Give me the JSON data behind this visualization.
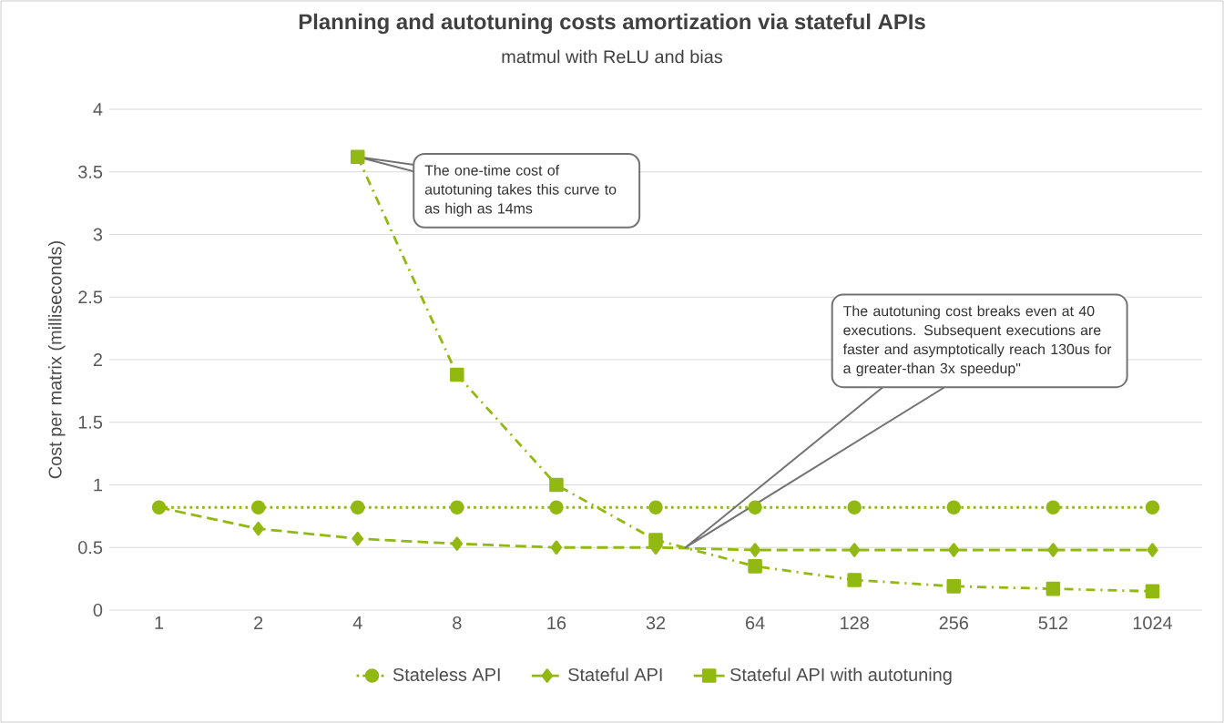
{
  "chart_data": {
    "type": "line",
    "title": "Planning and autotuning costs amortization via stateful APIs",
    "subtitle": "matmul with ReLU and bias",
    "ylabel": "Cost per matrix (milliseconds)",
    "categories": [
      "1",
      "2",
      "4",
      "8",
      "16",
      "32",
      "64",
      "128",
      "256",
      "512",
      "1024"
    ],
    "series": [
      {
        "name": "Stateless API",
        "color": "#92b812",
        "marker": "circle",
        "line_style": "dotted",
        "values": [
          0.82,
          0.82,
          0.82,
          0.82,
          0.82,
          0.82,
          0.82,
          0.82,
          0.82,
          0.82,
          0.82
        ]
      },
      {
        "name": "Stateful API",
        "color": "#92b812",
        "marker": "diamond",
        "line_style": "dashed",
        "values": [
          0.82,
          0.65,
          0.57,
          0.53,
          0.5,
          0.5,
          0.48,
          0.48,
          0.48,
          0.48,
          0.48
        ]
      },
      {
        "name": "Stateful API with autotuning",
        "color": "#92b812",
        "marker": "square",
        "line_style": "dashdotted",
        "values": [
          null,
          null,
          3.62,
          1.88,
          1.0,
          0.56,
          0.35,
          0.24,
          0.19,
          0.17,
          0.15
        ]
      }
    ],
    "ylim": [
      0,
      4
    ],
    "yticks": [
      0,
      0.5,
      1,
      1.5,
      2,
      2.5,
      3,
      3.5,
      4
    ],
    "grid": "y",
    "legend": "bottom",
    "annotations": [
      "The one-time cost of autotuning takes this curve to as high as 14ms",
      "The autotuning cost breaks even at 40 executions. Subsequent executions are faster and asymptotically reach 130us for a greater-than 3x speedup\""
    ]
  }
}
